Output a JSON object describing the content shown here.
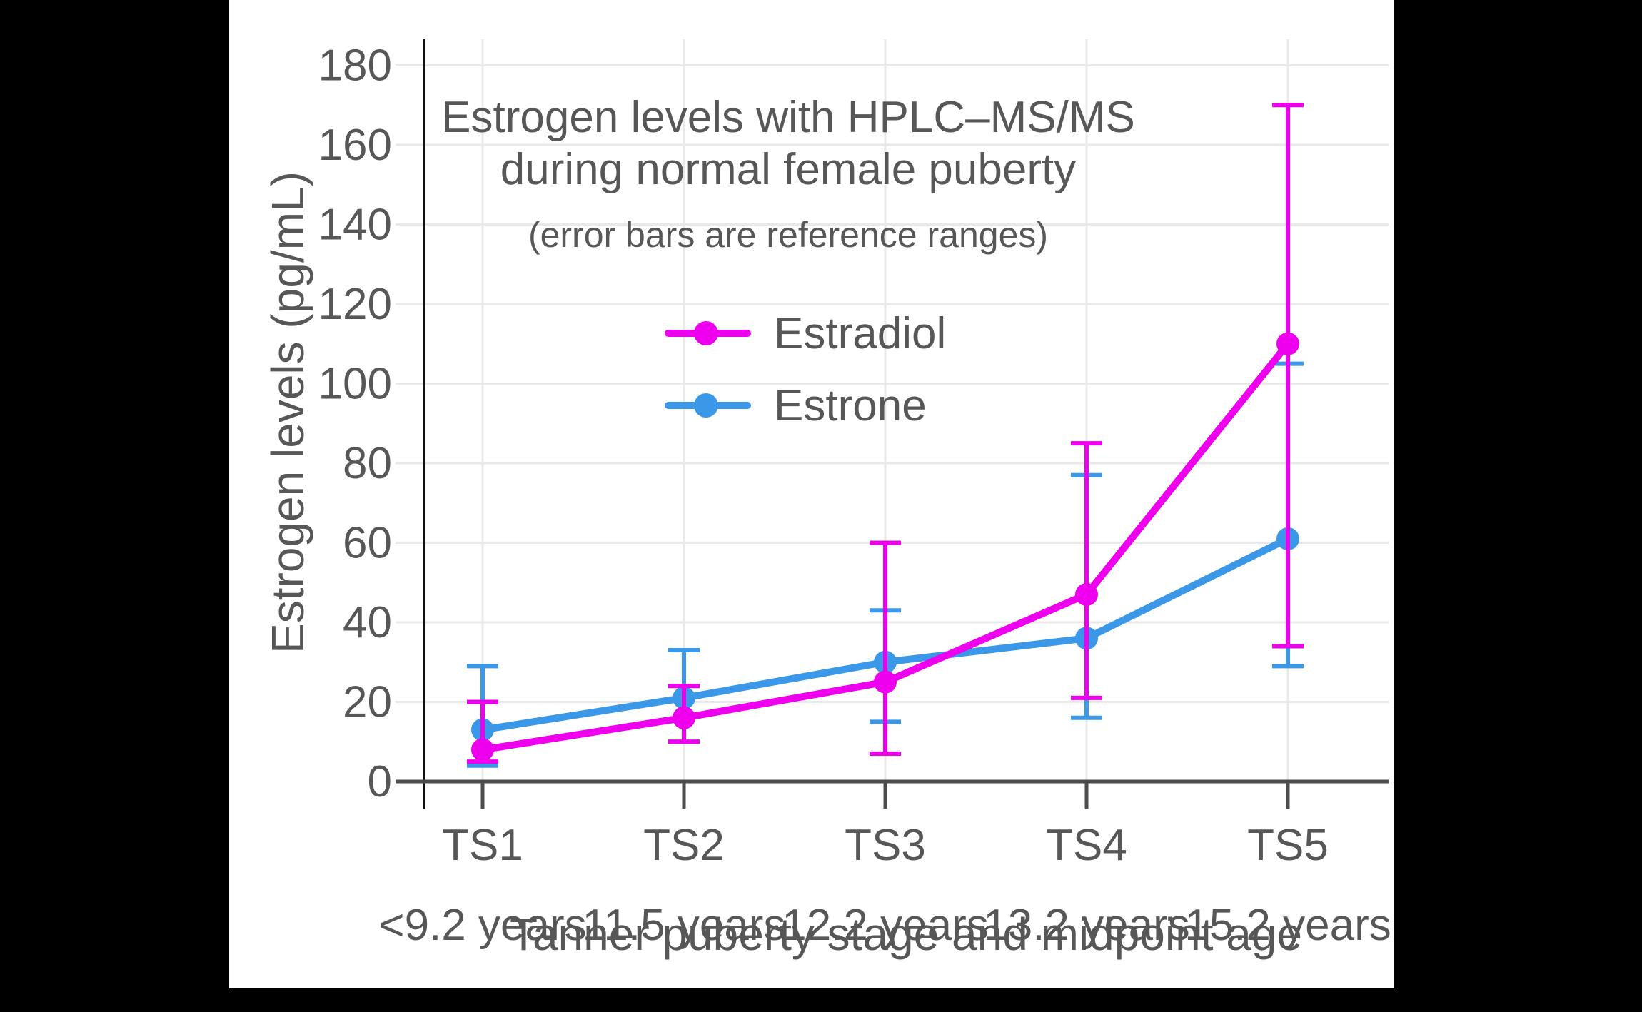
{
  "title": {
    "line1": "Estrogen levels with HPLC–MS/MS",
    "line2": "during normal female puberty",
    "subtitle": "(error bars are reference ranges)"
  },
  "legend": {
    "items": [
      {
        "label": "Estradiol",
        "color": "#EE00EE"
      },
      {
        "label": "Estrone",
        "color": "#3B98E8"
      }
    ]
  },
  "axes": {
    "x_title": "Tanner puberty stage and midpoint age",
    "y_title": "Estrogen levels (pg/mL)",
    "y_tick_labels": [
      "0",
      "20",
      "40",
      "60",
      "80",
      "100",
      "120",
      "140",
      "160",
      "180"
    ]
  },
  "theme": {
    "background": "#ffffff",
    "frame": "#000000",
    "text": "#575757",
    "grid": "#e9e9e9",
    "spine": "#111111",
    "axis": "#4d4d4d",
    "estradiol": "#EE00EE",
    "estrone": "#3B98E8"
  },
  "chart_data": {
    "type": "line",
    "title": "Estrogen levels with HPLC–MS/MS during normal female puberty",
    "subtitle": "(error bars are reference ranges)",
    "xlabel": "Tanner puberty stage and midpoint age",
    "ylabel": "Estrogen levels (pg/mL)",
    "ylim": [
      0,
      180
    ],
    "ytick_step": 20,
    "grid": true,
    "legend_position": "upper-left-inside",
    "categories": [
      "TS1",
      "TS2",
      "TS3",
      "TS4",
      "TS5"
    ],
    "category_sublabels": [
      "<9.2 years",
      "11.5 years",
      "12.2 years",
      "13.2 years",
      "15.2 years"
    ],
    "series": [
      {
        "name": "Estrone",
        "color": "#3B98E8",
        "values": [
          13,
          21,
          30,
          36,
          61
        ],
        "error_low": [
          4,
          10,
          15,
          16,
          29
        ],
        "error_high": [
          29,
          33,
          43,
          77,
          105
        ]
      },
      {
        "name": "Estradiol",
        "color": "#EE00EE",
        "values": [
          8,
          16,
          25,
          47,
          110
        ],
        "error_low": [
          5,
          10,
          7,
          21,
          34
        ],
        "error_high": [
          20,
          24,
          60,
          85,
          170
        ]
      }
    ]
  }
}
